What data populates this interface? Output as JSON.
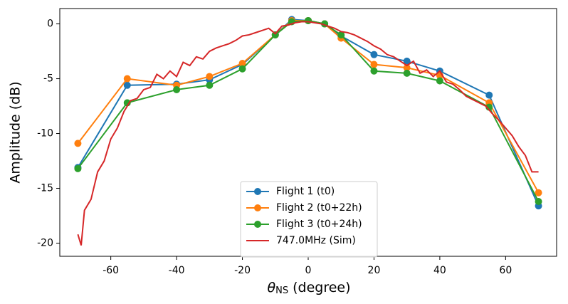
{
  "chart_data": {
    "type": "line",
    "xlabel": {
      "symbol": "θ",
      "subscript": "NS",
      "text": "(degree)"
    },
    "ylabel": "Amplitude (dB)",
    "xlim": [
      -75.5,
      75.5
    ],
    "ylim": [
      -21.2,
      1.4
    ],
    "xticks": [
      -60,
      -40,
      -20,
      0,
      20,
      40,
      60
    ],
    "yticks": [
      0,
      -5,
      -10,
      -15,
      -20
    ],
    "legend": "lower center",
    "series": [
      {
        "name": "Flight 1 (t0)",
        "color": "#1f77b4",
        "marker": true,
        "x": [
          -70,
          -55,
          -40,
          -30,
          -20,
          -10,
          -5,
          0,
          5,
          10,
          20,
          30,
          40,
          55,
          70
        ],
        "values": [
          -13.1,
          -5.6,
          -5.5,
          -5.1,
          -3.7,
          -1.0,
          0.4,
          0.3,
          0.0,
          -1.1,
          -2.8,
          -3.4,
          -4.3,
          -6.5,
          -16.6
        ]
      },
      {
        "name": "Flight 2 (t0+22h)",
        "color": "#ff7f0e",
        "marker": true,
        "x": [
          -70,
          -55,
          -40,
          -30,
          -20,
          -10,
          -5,
          0,
          5,
          10,
          20,
          30,
          40,
          55,
          70
        ],
        "values": [
          -10.9,
          -5.0,
          -5.6,
          -4.8,
          -3.6,
          -1.0,
          0.3,
          0.3,
          0.0,
          -1.3,
          -3.7,
          -4.0,
          -4.7,
          -7.2,
          -15.4
        ]
      },
      {
        "name": "Flight 3 (t0+24h)",
        "color": "#2ca02c",
        "marker": true,
        "x": [
          -70,
          -55,
          -40,
          -30,
          -20,
          -10,
          -5,
          0,
          5,
          10,
          20,
          30,
          40,
          55,
          70
        ],
        "values": [
          -13.2,
          -7.2,
          -6.0,
          -5.6,
          -4.1,
          -1.0,
          0.2,
          0.3,
          0.0,
          -1.0,
          -4.3,
          -4.5,
          -5.2,
          -7.6,
          -16.2
        ]
      },
      {
        "name": "747.0MHz (Sim)",
        "color": "#d62728",
        "marker": false,
        "x": [
          -70,
          -69,
          -68,
          -66,
          -64,
          -62,
          -60,
          -58,
          -56,
          -54,
          -52,
          -50,
          -48,
          -46,
          -44,
          -42,
          -40,
          -38,
          -36,
          -34,
          -32,
          -30,
          -28,
          -26,
          -24,
          -22,
          -20,
          -18,
          -16,
          -14,
          -12,
          -10,
          -8,
          -6,
          -4,
          -2,
          0,
          2,
          4,
          6,
          8,
          10,
          12,
          14,
          16,
          18,
          20,
          22,
          24,
          26,
          28,
          30,
          32,
          34,
          36,
          38,
          40,
          42,
          44,
          46,
          48,
          50,
          52,
          54,
          56,
          58,
          60,
          62,
          64,
          66,
          68,
          70
        ],
        "values": [
          -19.2,
          -20.2,
          -17.0,
          -16.0,
          -13.5,
          -12.5,
          -10.5,
          -9.5,
          -8.0,
          -7.0,
          -6.8,
          -6.0,
          -5.8,
          -4.6,
          -5.0,
          -4.3,
          -4.8,
          -3.5,
          -3.8,
          -3.0,
          -3.2,
          -2.5,
          -2.2,
          -2.0,
          -1.8,
          -1.5,
          -1.1,
          -1.0,
          -0.8,
          -0.6,
          -0.4,
          -0.9,
          -0.2,
          -0.1,
          0.1,
          0.2,
          0.2,
          0.1,
          0.0,
          -0.2,
          -0.4,
          -0.7,
          -0.8,
          -1.0,
          -1.3,
          -1.6,
          -2.0,
          -2.3,
          -2.8,
          -3.0,
          -3.4,
          -3.8,
          -3.4,
          -4.5,
          -4.2,
          -4.8,
          -4.3,
          -5.3,
          -5.5,
          -6.0,
          -6.6,
          -6.9,
          -7.2,
          -7.5,
          -8.2,
          -8.8,
          -9.5,
          -10.2,
          -11.2,
          -12.0,
          -13.5,
          -13.5
        ]
      }
    ]
  }
}
